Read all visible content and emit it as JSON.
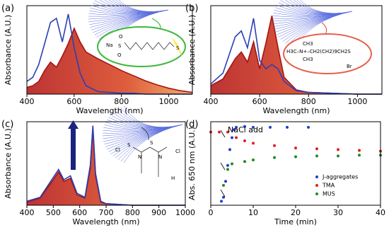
{
  "chart_data": [
    {
      "type": "line",
      "panel_label": "(a)",
      "x_label": "Wavelength (nm)",
      "y_label": "Absorbance (A.U.)",
      "xlim": [
        400,
        1100
      ],
      "xticks": [
        400,
        600,
        800,
        1000
      ],
      "ylim": [
        0,
        1.05
      ],
      "fill": true,
      "x": [
        400,
        425,
        450,
        475,
        500,
        525,
        550,
        575,
        600,
        625,
        650,
        700,
        750,
        800,
        850,
        900,
        950,
        1000,
        1050,
        1100
      ],
      "series": [
        {
          "color": "#a31515",
          "values": [
            0.08,
            0.1,
            0.15,
            0.28,
            0.38,
            0.32,
            0.45,
            0.6,
            0.78,
            0.62,
            0.5,
            0.42,
            0.35,
            0.28,
            0.22,
            0.16,
            0.11,
            0.07,
            0.04,
            0.02
          ]
        },
        {
          "color": "#2b3fb5",
          "values": [
            0.15,
            0.2,
            0.35,
            0.6,
            0.85,
            0.9,
            0.62,
            0.95,
            0.55,
            0.25,
            0.1,
            0.03,
            0.02,
            0.01,
            0.01,
            0,
            0,
            0,
            0,
            0
          ]
        }
      ]
    },
    {
      "type": "line",
      "panel_label": "(b)",
      "x_label": "Wavelength (nm)",
      "y_label": "Absorbance (A.U.)",
      "xlim": [
        400,
        1100
      ],
      "xticks": [
        400,
        600,
        800,
        1000
      ],
      "ylim": [
        0,
        1.05
      ],
      "fill": true,
      "x": [
        400,
        450,
        500,
        525,
        550,
        575,
        600,
        625,
        650,
        675,
        700,
        750,
        800,
        900,
        1000,
        1100
      ],
      "series": [
        {
          "color": "#a31515",
          "values": [
            0.1,
            0.18,
            0.42,
            0.5,
            0.38,
            0.62,
            0.3,
            0.6,
            0.93,
            0.55,
            0.2,
            0.05,
            0.02,
            0.01,
            0,
            0
          ]
        },
        {
          "color": "#2b3fb5",
          "values": [
            0.12,
            0.25,
            0.68,
            0.75,
            0.55,
            0.9,
            0.4,
            0.3,
            0.35,
            0.3,
            0.15,
            0.04,
            0.02,
            0.01,
            0,
            0
          ]
        }
      ]
    },
    {
      "type": "line",
      "panel_label": "(c)",
      "x_label": "Wavelength (nm)",
      "y_label": "Absorbance (A.U.)",
      "xlim": [
        400,
        1000
      ],
      "xticks": [
        400,
        500,
        600,
        700,
        800,
        900,
        1000
      ],
      "ylim": [
        0,
        1.05
      ],
      "fill": true,
      "x": [
        400,
        450,
        500,
        520,
        540,
        565,
        590,
        620,
        640,
        650,
        660,
        680,
        700,
        800,
        900,
        1000
      ],
      "series": [
        {
          "color": "#a31515",
          "values": [
            0.04,
            0.09,
            0.32,
            0.42,
            0.3,
            0.34,
            0.13,
            0.09,
            0.46,
            0.96,
            0.37,
            0.04,
            0.02,
            0,
            0,
            0
          ]
        },
        {
          "color": "#2b3fb5",
          "values": [
            0.05,
            0.1,
            0.35,
            0.45,
            0.32,
            0.37,
            0.15,
            0.1,
            0.5,
            1.0,
            0.4,
            0.05,
            0.02,
            0,
            0,
            0
          ]
        }
      ]
    },
    {
      "type": "scatter",
      "panel_label": "(d)",
      "x_label": "Time (min)",
      "y_label": "Abs. 650 nm (A.U.)",
      "xlim": [
        0,
        40
      ],
      "xticks": [
        0,
        10,
        20,
        30,
        40
      ],
      "ylim": [
        0,
        1.05
      ],
      "legend": "lower right",
      "annotation": "NaCl add",
      "series": [
        {
          "name": "J-aggregates",
          "color": "#1f3fd0",
          "x": [
            2.5,
            3,
            3.5,
            4,
            4.5,
            5,
            5.5,
            6,
            8,
            10,
            14,
            18,
            23
          ],
          "values": [
            0.05,
            0.1,
            0.3,
            0.5,
            0.7,
            0.85,
            0.95,
            0.98,
            0.99,
            0.98,
            0.98,
            0.98,
            0.98
          ]
        },
        {
          "name": "TMA",
          "color": "#e02020",
          "x": [
            0,
            2,
            4,
            6,
            8,
            10,
            15,
            20,
            25,
            30,
            35,
            40
          ],
          "values": [
            0.92,
            0.92,
            0.92,
            0.85,
            0.81,
            0.78,
            0.75,
            0.72,
            0.71,
            0.7,
            0.69,
            0.68
          ]
        },
        {
          "name": "MUS",
          "color": "#1f8a1f",
          "x": [
            3,
            4,
            5,
            8,
            10,
            15,
            20,
            25,
            30,
            35,
            40
          ],
          "values": [
            0.25,
            0.45,
            0.52,
            0.55,
            0.57,
            0.6,
            0.61,
            0.62,
            0.62,
            0.63,
            0.63
          ]
        }
      ]
    }
  ],
  "insets": {
    "a": [
      "Na",
      "O",
      "S",
      "O",
      "S"
    ],
    "b": [
      "CH3",
      "H3C–N+–CH2(CH2)9CH2S",
      "CH3",
      "Br"
    ],
    "c": [
      "Cl",
      "S",
      "N",
      "S",
      "N",
      "Cl",
      "H"
    ]
  }
}
